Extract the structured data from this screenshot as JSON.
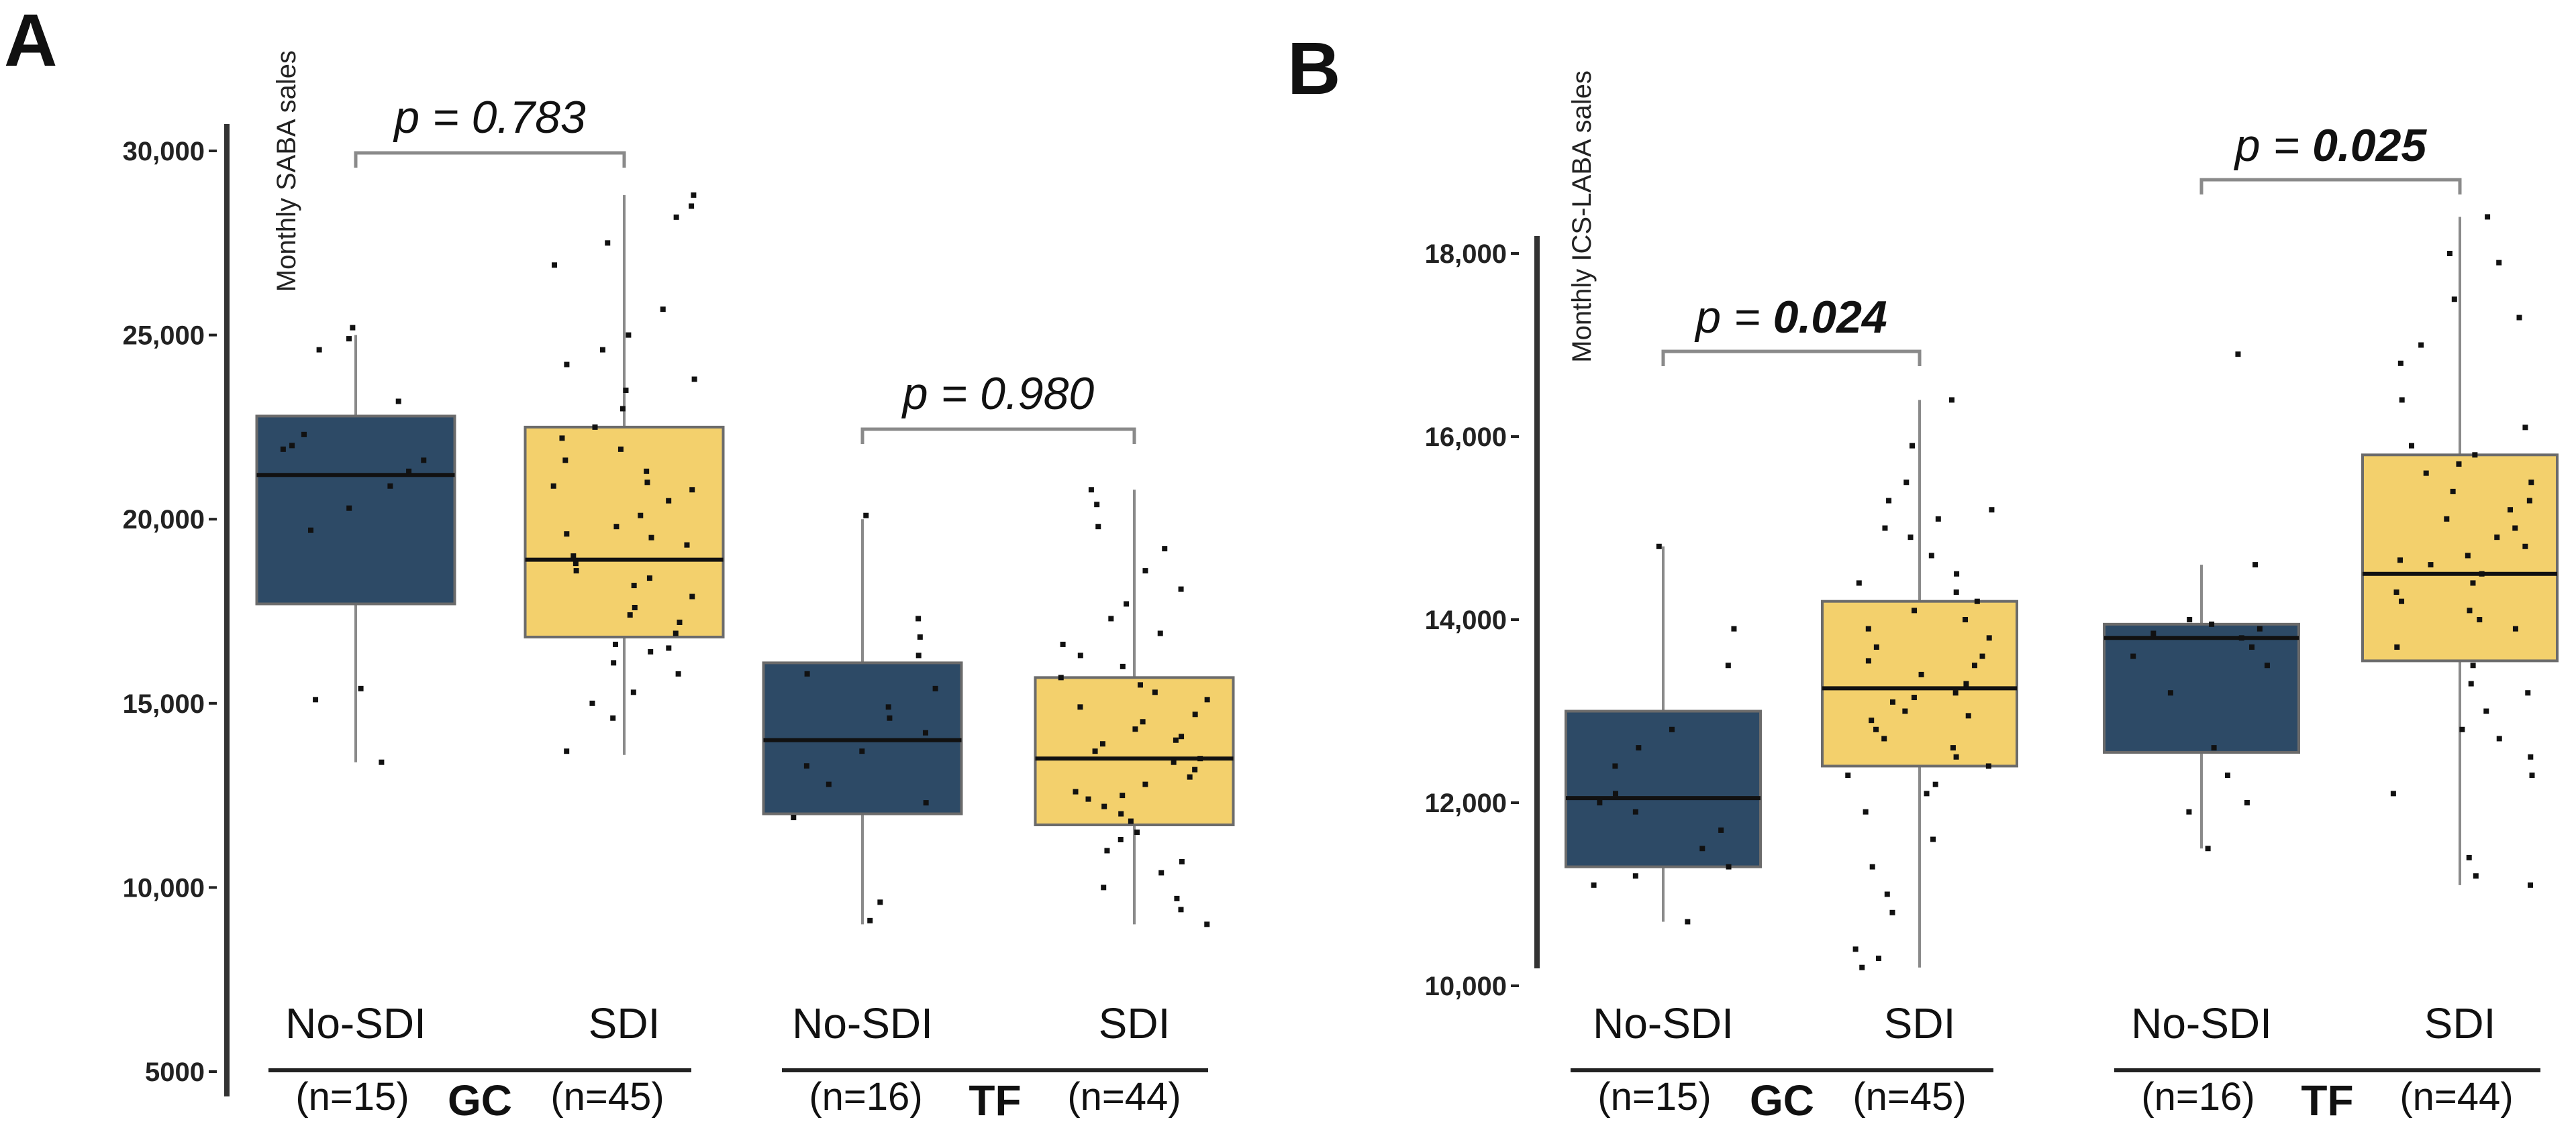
{
  "chart_data": [
    {
      "panel_label": "A",
      "type": "box",
      "ylabel": "Monthly SABA sales",
      "ylim": [
        5000,
        30000
      ],
      "yticks": [
        5000,
        10000,
        15000,
        20000,
        25000,
        30000
      ],
      "ytick_labels": [
        "5000",
        "10,000",
        "15,000",
        "20,000",
        "25,000",
        "30,000"
      ],
      "groups": [
        {
          "name": "GC",
          "p_value_label": "p = 0.783",
          "p_bold": false,
          "boxes": [
            {
              "category": "No-SDI",
              "n_label": "(n=15)",
              "color": "#2d4a66",
              "whisker_low": 13400,
              "q1": 17700,
              "median": 21200,
              "q3": 22800,
              "whisker_high": 25000,
              "points": [
                13400,
                15100,
                15400,
                19700,
                20300,
                20900,
                21300,
                21600,
                21900,
                22000,
                22300,
                23200,
                24600,
                24900,
                25200
              ]
            },
            {
              "category": "SDI",
              "n_label": "(n=45)",
              "color": "#f3d06c",
              "whisker_low": 13600,
              "q1": 16800,
              "median": 18900,
              "q3": 22500,
              "whisker_high": 28800,
              "points": [
                13700,
                14600,
                15000,
                15300,
                15800,
                16100,
                16400,
                16600,
                16900,
                17200,
                17600,
                17900,
                18200,
                18400,
                18600,
                18800,
                19000,
                19300,
                19600,
                19800,
                20100,
                20500,
                20800,
                21000,
                21300,
                21600,
                21900,
                22200,
                22500,
                23000,
                23500,
                23800,
                24200,
                24600,
                25000,
                25700,
                26900,
                27500,
                28200,
                28500,
                28800,
                16500,
                17400,
                19500,
                20900
              ]
            }
          ]
        },
        {
          "name": "TF",
          "p_value_label": "p = 0.980",
          "p_bold": false,
          "boxes": [
            {
              "category": "No-SDI",
              "n_label": "(n=16)",
              "color": "#2d4a66",
              "whisker_low": 9000,
              "q1": 12000,
              "median": 14000,
              "q3": 16100,
              "whisker_high": 20000,
              "points": [
                9100,
                9600,
                11900,
                12300,
                12800,
                13300,
                13700,
                14200,
                14600,
                14900,
                15400,
                15800,
                16300,
                16800,
                17300,
                20100
              ]
            },
            {
              "category": "SDI",
              "n_label": "(n=44)",
              "color": "#f3d06c",
              "whisker_low": 9000,
              "q1": 11700,
              "median": 13500,
              "q3": 15700,
              "whisker_high": 20800,
              "points": [
                9000,
                9400,
                9700,
                10000,
                10400,
                10700,
                11000,
                11300,
                11500,
                11800,
                12000,
                12200,
                12400,
                12600,
                12800,
                13000,
                13200,
                13400,
                13500,
                13700,
                13900,
                14100,
                14300,
                14500,
                14700,
                14900,
                15100,
                15300,
                15500,
                15700,
                16000,
                16300,
                16600,
                16900,
                17300,
                17700,
                18100,
                18600,
                19200,
                19800,
                20400,
                20800,
                12500,
                14000
              ]
            }
          ]
        }
      ]
    },
    {
      "panel_label": "B",
      "type": "box",
      "ylabel": "Monthly ICS-LABA sales",
      "ylim": [
        10000,
        18000
      ],
      "yticks": [
        10000,
        12000,
        14000,
        16000,
        18000
      ],
      "ytick_labels": [
        "10,000",
        "12,000",
        "14,000",
        "16,000",
        "18,000"
      ],
      "groups": [
        {
          "name": "GC",
          "p_value_label": "p = ",
          "p_value_bold": "0.024",
          "p_bold": true,
          "boxes": [
            {
              "category": "No-SDI",
              "n_label": "(n=15)",
              "color": "#2d4a66",
              "whisker_low": 10700,
              "q1": 11300,
              "median": 12050,
              "q3": 13000,
              "whisker_high": 14800,
              "points": [
                10700,
                11100,
                11200,
                11300,
                11500,
                11700,
                11900,
                12000,
                12100,
                12400,
                12600,
                12800,
                13500,
                13900,
                14800
              ]
            },
            {
              "category": "SDI",
              "n_label": "(n=45)",
              "color": "#f3d06c",
              "whisker_low": 10200,
              "q1": 12400,
              "median": 13250,
              "q3": 14200,
              "whisker_high": 16400,
              "points": [
                10200,
                10300,
                10400,
                10800,
                11300,
                11600,
                11900,
                12100,
                12300,
                12400,
                12500,
                12600,
                12700,
                12800,
                12900,
                13000,
                13100,
                13200,
                13300,
                13400,
                13500,
                13600,
                13700,
                13800,
                13900,
                14000,
                14100,
                14200,
                14300,
                14500,
                14700,
                14900,
                15000,
                15100,
                15300,
                15500,
                15900,
                16400,
                12200,
                13150,
                13550,
                11000,
                14400,
                15200,
                12950
              ]
            }
          ]
        },
        {
          "name": "TF",
          "p_value_label": "p = ",
          "p_value_bold": "0.025",
          "p_bold": true,
          "boxes": [
            {
              "category": "No-SDI",
              "n_label": "(n=16)",
              "color": "#2d4a66",
              "whisker_low": 11500,
              "q1": 12550,
              "median": 13800,
              "q3": 13950,
              "whisker_high": 14600,
              "points": [
                11500,
                11900,
                12000,
                12300,
                12600,
                13200,
                13500,
                13600,
                13700,
                13800,
                13850,
                13900,
                13950,
                14000,
                14600,
                16900
              ]
            },
            {
              "category": "SDI",
              "n_label": "(n=44)",
              "color": "#f3d06c",
              "whisker_low": 11100,
              "q1": 13550,
              "median": 14500,
              "q3": 15800,
              "whisker_high": 18400,
              "points": [
                11100,
                11200,
                11400,
                12100,
                12300,
                12500,
                12700,
                12800,
                13000,
                13300,
                13500,
                13700,
                13900,
                14000,
                14100,
                14200,
                14300,
                14400,
                14500,
                14600,
                14700,
                14800,
                14900,
                15000,
                15100,
                15200,
                15300,
                15400,
                15500,
                15600,
                15700,
                15800,
                15900,
                16100,
                16400,
                16800,
                17000,
                17300,
                17500,
                17900,
                18000,
                18400,
                13200,
                14650
              ]
            }
          ]
        }
      ]
    }
  ]
}
